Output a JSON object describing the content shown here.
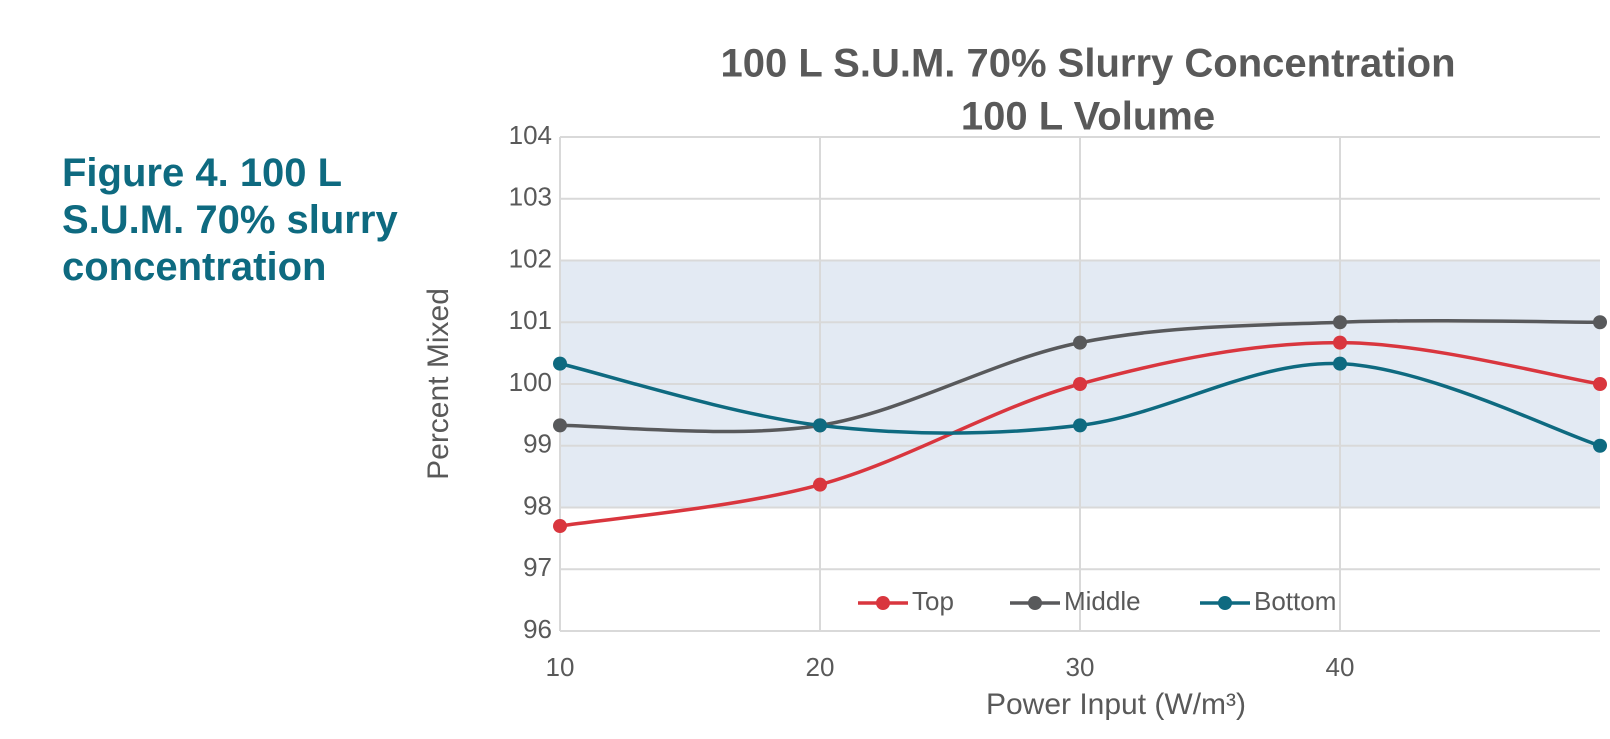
{
  "caption": "Figure 4. 100 L S.U.M. 70% slurry concentration",
  "chart_data": {
    "type": "line",
    "title": "100 L S.U.M. 70% Slurry Concentration",
    "subtitle": "100 L Volume",
    "x_label": "Power Input (W/m³)",
    "y_label": "Percent Mixed",
    "x": [
      10,
      20,
      30,
      40,
      50
    ],
    "series": [
      {
        "name": "Top",
        "color": "#d9363e",
        "values": [
          97.7,
          98.37,
          100,
          100.67,
          100
        ]
      },
      {
        "name": "Middle",
        "color": "#58595b",
        "values": [
          99.33,
          99.33,
          100.67,
          101,
          101
        ]
      },
      {
        "name": "Bottom",
        "color": "#0e6a80",
        "values": [
          100.33,
          99.33,
          99.33,
          100.33,
          99
        ]
      }
    ],
    "xlim": [
      10,
      50
    ],
    "xticks": [
      10,
      20,
      30,
      40
    ],
    "ylim": [
      96,
      104
    ],
    "yticks": [
      96,
      97,
      98,
      99,
      100,
      101,
      102,
      103,
      104
    ],
    "band": [
      98,
      102
    ],
    "band_color": "#e3eaf3",
    "grid": true,
    "smooth": true,
    "legend": "bottom"
  }
}
